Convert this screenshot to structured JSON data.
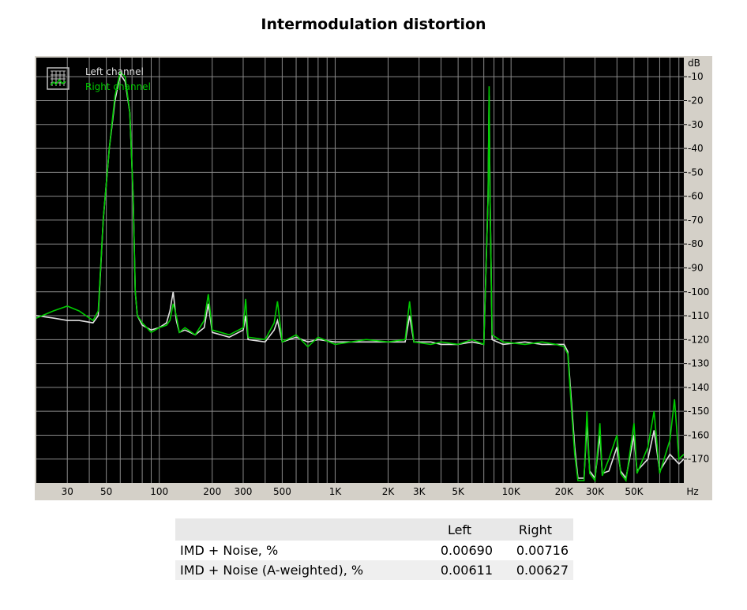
{
  "title": "Intermodulation distortion",
  "chart_data": {
    "type": "line",
    "title": "Intermodulation distortion",
    "xlabel": "Hz",
    "ylabel": "dB",
    "x_scale": "log",
    "xlim": [
      20,
      96000
    ],
    "ylim": [
      -180,
      -2
    ],
    "x_ticks": [
      {
        "value": 30,
        "label": "30"
      },
      {
        "value": 50,
        "label": "50"
      },
      {
        "value": 100,
        "label": "100"
      },
      {
        "value": 200,
        "label": "200"
      },
      {
        "value": 300,
        "label": "300"
      },
      {
        "value": 500,
        "label": "500"
      },
      {
        "value": 1000,
        "label": "1K"
      },
      {
        "value": 2000,
        "label": "2K"
      },
      {
        "value": 3000,
        "label": "3K"
      },
      {
        "value": 5000,
        "label": "5K"
      },
      {
        "value": 10000,
        "label": "10K"
      },
      {
        "value": 20000,
        "label": "20K"
      },
      {
        "value": 30000,
        "label": "30K"
      },
      {
        "value": 50000,
        "label": "50K"
      }
    ],
    "y_ticks": [
      {
        "value": -10,
        "label": "-10"
      },
      {
        "value": -20,
        "label": "-20"
      },
      {
        "value": -30,
        "label": "-30"
      },
      {
        "value": -40,
        "label": "-40"
      },
      {
        "value": -50,
        "label": "-50"
      },
      {
        "value": -60,
        "label": "-60"
      },
      {
        "value": -70,
        "label": "-70"
      },
      {
        "value": -80,
        "label": "-80"
      },
      {
        "value": -90,
        "label": "-90"
      },
      {
        "value": -100,
        "label": "-100"
      },
      {
        "value": -110,
        "label": "-110"
      },
      {
        "value": -120,
        "label": "-120"
      },
      {
        "value": -130,
        "label": "-130"
      },
      {
        "value": -140,
        "label": "-140"
      },
      {
        "value": -150,
        "label": "-150"
      },
      {
        "value": -160,
        "label": "-160"
      },
      {
        "value": -170,
        "label": "-170"
      }
    ],
    "grid": true,
    "legend_position": "top-left",
    "series": [
      {
        "name": "Left channel",
        "color": "#e0e0e0",
        "points": [
          [
            20,
            -110
          ],
          [
            25,
            -111
          ],
          [
            30,
            -112
          ],
          [
            35,
            -112
          ],
          [
            42,
            -113
          ],
          [
            45,
            -110
          ],
          [
            48,
            -70
          ],
          [
            52,
            -40
          ],
          [
            56,
            -20
          ],
          [
            60,
            -9
          ],
          [
            64,
            -12
          ],
          [
            68,
            -25
          ],
          [
            71,
            -60
          ],
          [
            73,
            -100
          ],
          [
            75,
            -110
          ],
          [
            80,
            -114
          ],
          [
            90,
            -116
          ],
          [
            100,
            -115
          ],
          [
            110,
            -113
          ],
          [
            115,
            -108
          ],
          [
            120,
            -100
          ],
          [
            125,
            -112
          ],
          [
            130,
            -117
          ],
          [
            140,
            -116
          ],
          [
            160,
            -118
          ],
          [
            180,
            -115
          ],
          [
            190,
            -105
          ],
          [
            200,
            -117
          ],
          [
            250,
            -119
          ],
          [
            300,
            -116
          ],
          [
            310,
            -110
          ],
          [
            320,
            -120
          ],
          [
            400,
            -121
          ],
          [
            450,
            -116
          ],
          [
            470,
            -112
          ],
          [
            500,
            -121
          ],
          [
            600,
            -119
          ],
          [
            700,
            -121
          ],
          [
            800,
            -120
          ],
          [
            1000,
            -121
          ],
          [
            1500,
            -121
          ],
          [
            2000,
            -121
          ],
          [
            2500,
            -121
          ],
          [
            2650,
            -110
          ],
          [
            2800,
            -121
          ],
          [
            3500,
            -121
          ],
          [
            4000,
            -122
          ],
          [
            5000,
            -122
          ],
          [
            6000,
            -121
          ],
          [
            7000,
            -122
          ],
          [
            7400,
            -60
          ],
          [
            7500,
            -18
          ],
          [
            7600,
            -60
          ],
          [
            7800,
            -120
          ],
          [
            9000,
            -122
          ],
          [
            12000,
            -121
          ],
          [
            15000,
            -122
          ],
          [
            18000,
            -122
          ],
          [
            20000,
            -122
          ],
          [
            21000,
            -125
          ],
          [
            22000,
            -145
          ],
          [
            23000,
            -165
          ],
          [
            24000,
            -178
          ],
          [
            26000,
            -178
          ],
          [
            27000,
            -155
          ],
          [
            28000,
            -175
          ],
          [
            30000,
            -178
          ],
          [
            32000,
            -160
          ],
          [
            33000,
            -176
          ],
          [
            36000,
            -175
          ],
          [
            40000,
            -165
          ],
          [
            42000,
            -175
          ],
          [
            45000,
            -178
          ],
          [
            50000,
            -160
          ],
          [
            52000,
            -175
          ],
          [
            60000,
            -170
          ],
          [
            65000,
            -158
          ],
          [
            70000,
            -175
          ],
          [
            80000,
            -168
          ],
          [
            90000,
            -172
          ],
          [
            96000,
            -170
          ]
        ]
      },
      {
        "name": "Right channel",
        "color": "#00cc00",
        "points": [
          [
            20,
            -111
          ],
          [
            25,
            -108
          ],
          [
            30,
            -106
          ],
          [
            35,
            -108
          ],
          [
            42,
            -112
          ],
          [
            45,
            -108
          ],
          [
            48,
            -70
          ],
          [
            52,
            -40
          ],
          [
            56,
            -18
          ],
          [
            60,
            -8
          ],
          [
            64,
            -10
          ],
          [
            68,
            -25
          ],
          [
            71,
            -60
          ],
          [
            73,
            -100
          ],
          [
            75,
            -110
          ],
          [
            80,
            -113
          ],
          [
            90,
            -117
          ],
          [
            100,
            -115
          ],
          [
            110,
            -114
          ],
          [
            115,
            -112
          ],
          [
            120,
            -105
          ],
          [
            125,
            -110
          ],
          [
            130,
            -117
          ],
          [
            140,
            -115
          ],
          [
            160,
            -118
          ],
          [
            180,
            -112
          ],
          [
            190,
            -101
          ],
          [
            200,
            -116
          ],
          [
            250,
            -118
          ],
          [
            300,
            -115
          ],
          [
            310,
            -103
          ],
          [
            320,
            -119
          ],
          [
            400,
            -120
          ],
          [
            450,
            -113
          ],
          [
            470,
            -104
          ],
          [
            500,
            -121
          ],
          [
            600,
            -118
          ],
          [
            700,
            -123
          ],
          [
            800,
            -119
          ],
          [
            1000,
            -122
          ],
          [
            1500,
            -120
          ],
          [
            2000,
            -121
          ],
          [
            2500,
            -120
          ],
          [
            2650,
            -104
          ],
          [
            2800,
            -121
          ],
          [
            3500,
            -122
          ],
          [
            4000,
            -121
          ],
          [
            5000,
            -122
          ],
          [
            6000,
            -120
          ],
          [
            7000,
            -122
          ],
          [
            7400,
            -60
          ],
          [
            7500,
            -14
          ],
          [
            7600,
            -60
          ],
          [
            7800,
            -118
          ],
          [
            9000,
            -121
          ],
          [
            12000,
            -122
          ],
          [
            15000,
            -121
          ],
          [
            18000,
            -122
          ],
          [
            20000,
            -123
          ],
          [
            21000,
            -126
          ],
          [
            22000,
            -148
          ],
          [
            23000,
            -168
          ],
          [
            24000,
            -179
          ],
          [
            26000,
            -179
          ],
          [
            27000,
            -150
          ],
          [
            28000,
            -176
          ],
          [
            30000,
            -179
          ],
          [
            32000,
            -155
          ],
          [
            33000,
            -177
          ],
          [
            36000,
            -170
          ],
          [
            40000,
            -160
          ],
          [
            42000,
            -176
          ],
          [
            45000,
            -179
          ],
          [
            50000,
            -155
          ],
          [
            52000,
            -176
          ],
          [
            60000,
            -165
          ],
          [
            65000,
            -150
          ],
          [
            70000,
            -176
          ],
          [
            80000,
            -162
          ],
          [
            85000,
            -145
          ],
          [
            90000,
            -170
          ],
          [
            96000,
            -168
          ]
        ]
      }
    ]
  },
  "results": {
    "headers": [
      "",
      "Left",
      "Right"
    ],
    "rows": [
      {
        "label": "IMD + Noise, %",
        "left": "0.00690",
        "right": "0.00716"
      },
      {
        "label": "IMD + Noise (A-weighted), %",
        "left": "0.00611",
        "right": "0.00627"
      }
    ]
  }
}
